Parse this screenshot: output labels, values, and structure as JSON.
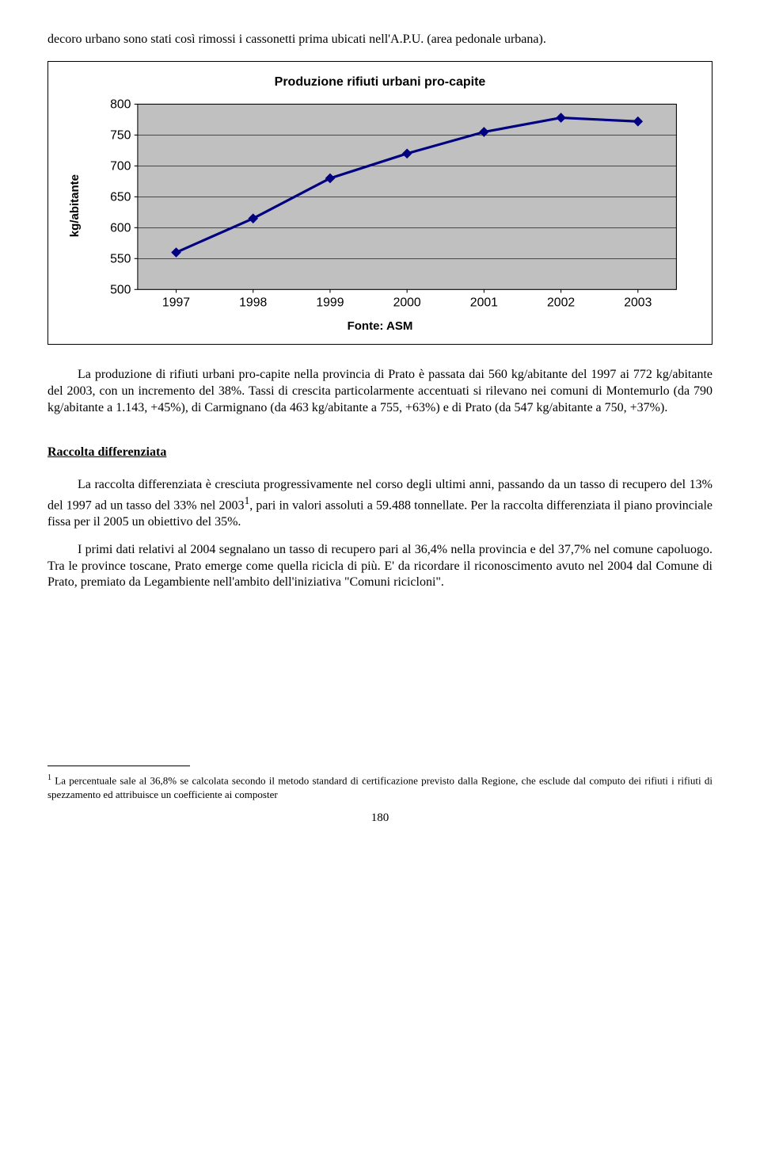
{
  "para1": "decoro urbano sono stati così rimossi i cassonetti prima ubicati nell'A.P.U. (area pedonale urbana).",
  "chart": {
    "type": "line",
    "title": "Produzione rifiuti urbani pro-capite",
    "ylabel": "kg/abitante",
    "fonte": "Fonte: ASM",
    "years": [
      "1997",
      "1998",
      "1999",
      "2000",
      "2001",
      "2002",
      "2003"
    ],
    "values": [
      560,
      615,
      680,
      720,
      755,
      778,
      772
    ],
    "ylim": [
      500,
      800
    ],
    "ytick_step": 50,
    "yticks": [
      "500",
      "550",
      "600",
      "650",
      "700",
      "750",
      "800"
    ],
    "line_color": "#000080",
    "line_width": 3,
    "marker_color": "#000080",
    "marker_size": 6,
    "plot_bg": "#c0c0c0",
    "grid_color": "#000000",
    "axis_font": 15
  },
  "para2": "La produzione di rifiuti urbani pro-capite nella provincia di Prato è passata dai 560 kg/abitante del 1997 ai 772 kg/abitante del 2003, con un incremento del 38%. Tassi di crescita particolarmente accentuati si rilevano nei comuni di Montemurlo (da 790 kg/abitante a 1.143, +45%), di Carmignano (da 463 kg/abitante a 755, +63%) e di Prato (da 547 kg/abitante a 750, +37%).",
  "section_head": "Raccolta differenziata",
  "para3_a": "La raccolta differenziata è cresciuta progressivamente nel corso degli ultimi anni, passando da un tasso di recupero del 13% del 1997 ad un tasso del 33% nel 2003",
  "para3_b": ", pari in valori assoluti a 59.488 tonnellate. Per la raccolta differenziata il piano provinciale fissa per il 2005 un obiettivo del 35%.",
  "para4": "I primi dati relativi al 2004 segnalano un tasso di recupero pari al 36,4% nella provincia e del 37,7% nel comune capoluogo. Tra le province toscane, Prato emerge come quella ricicla di più. E' da ricordare il riconoscimento avuto nel 2004 dal Comune di Prato, premiato da Legambiente nell'ambito dell'iniziativa \"Comuni ricicloni\".",
  "footnote_marker": "1",
  "footnote": " La percentuale sale al 36,8% se calcolata secondo il metodo standard di certificazione previsto dalla Regione, che esclude dal computo dei rifiuti i rifiuti di spezzamento ed attribuisce un coefficiente ai composter",
  "page_num": "180"
}
